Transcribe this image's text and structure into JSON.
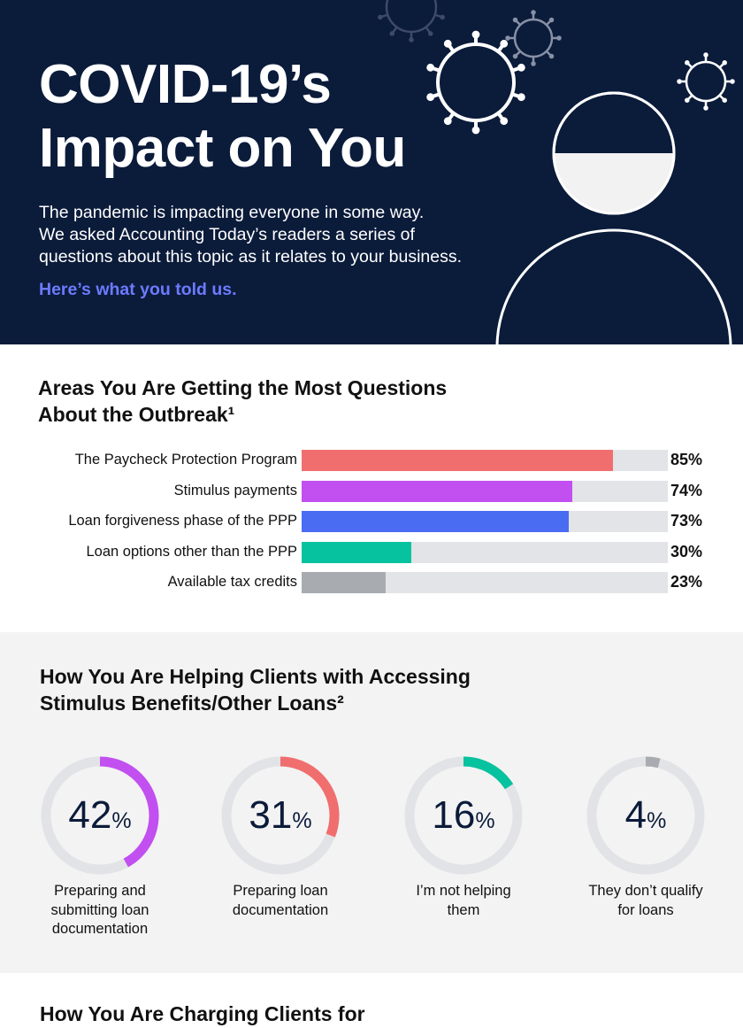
{
  "hero": {
    "title_lines": [
      "COVID-19’s",
      "Impact on You"
    ],
    "intro_lines": [
      "The pandemic is impacting everyone in some way.",
      "We asked Accounting Today’s readers a series of",
      "questions about this topic as it relates to your business."
    ],
    "cta": "Here’s what you told us.",
    "icons": [
      "virus-icon",
      "person-icon"
    ]
  },
  "chart_data": [
    {
      "type": "bar",
      "title": "Areas You Are Getting the Most Questions About the Outbreak¹",
      "title_lines": [
        "Areas You Are Getting the Most Questions",
        "About the Outbreak¹"
      ],
      "categories": [
        "The Paycheck Protection Program",
        "Stimulus payments",
        "Loan forgiveness phase of the PPP",
        "Loan options other than the PPP",
        "Available tax credits"
      ],
      "values": [
        85,
        74,
        73,
        30,
        23
      ],
      "value_labels": [
        "85%",
        "74%",
        "73%",
        "30%",
        "23%"
      ],
      "colors": [
        "#f16e6e",
        "#c24ff0",
        "#4a6cf2",
        "#07c29e",
        "#a8acb1"
      ],
      "track_color": "#e3e4e8",
      "xlim": [
        0,
        100
      ]
    },
    {
      "type": "pie",
      "title": "How You Are Helping Clients with Accessing Stimulus Benefits/Other Loans²",
      "title_lines": [
        "How You Are Helping Clients with Accessing",
        "Stimulus Benefits/Other Loans²"
      ],
      "items": [
        {
          "value": 42,
          "number": "42",
          "unit": "%",
          "label_lines": [
            "Preparing and",
            "submitting loan",
            "documentation"
          ],
          "color": "#c24ff0"
        },
        {
          "value": 31,
          "number": "31",
          "unit": "%",
          "label_lines": [
            "Preparing loan",
            "documentation"
          ],
          "color": "#f16e6e"
        },
        {
          "value": 16,
          "number": "16",
          "unit": "%",
          "label_lines": [
            "I’m not helping",
            "them"
          ],
          "color": "#07c29e"
        },
        {
          "value": 4,
          "number": "4",
          "unit": "%",
          "label_lines": [
            "They don’t qualify",
            "for loans"
          ],
          "color": "#a8acb1"
        }
      ],
      "track_color": "#e2e3e6"
    }
  ],
  "section3": {
    "title": "How You Are Charging Clients for"
  }
}
